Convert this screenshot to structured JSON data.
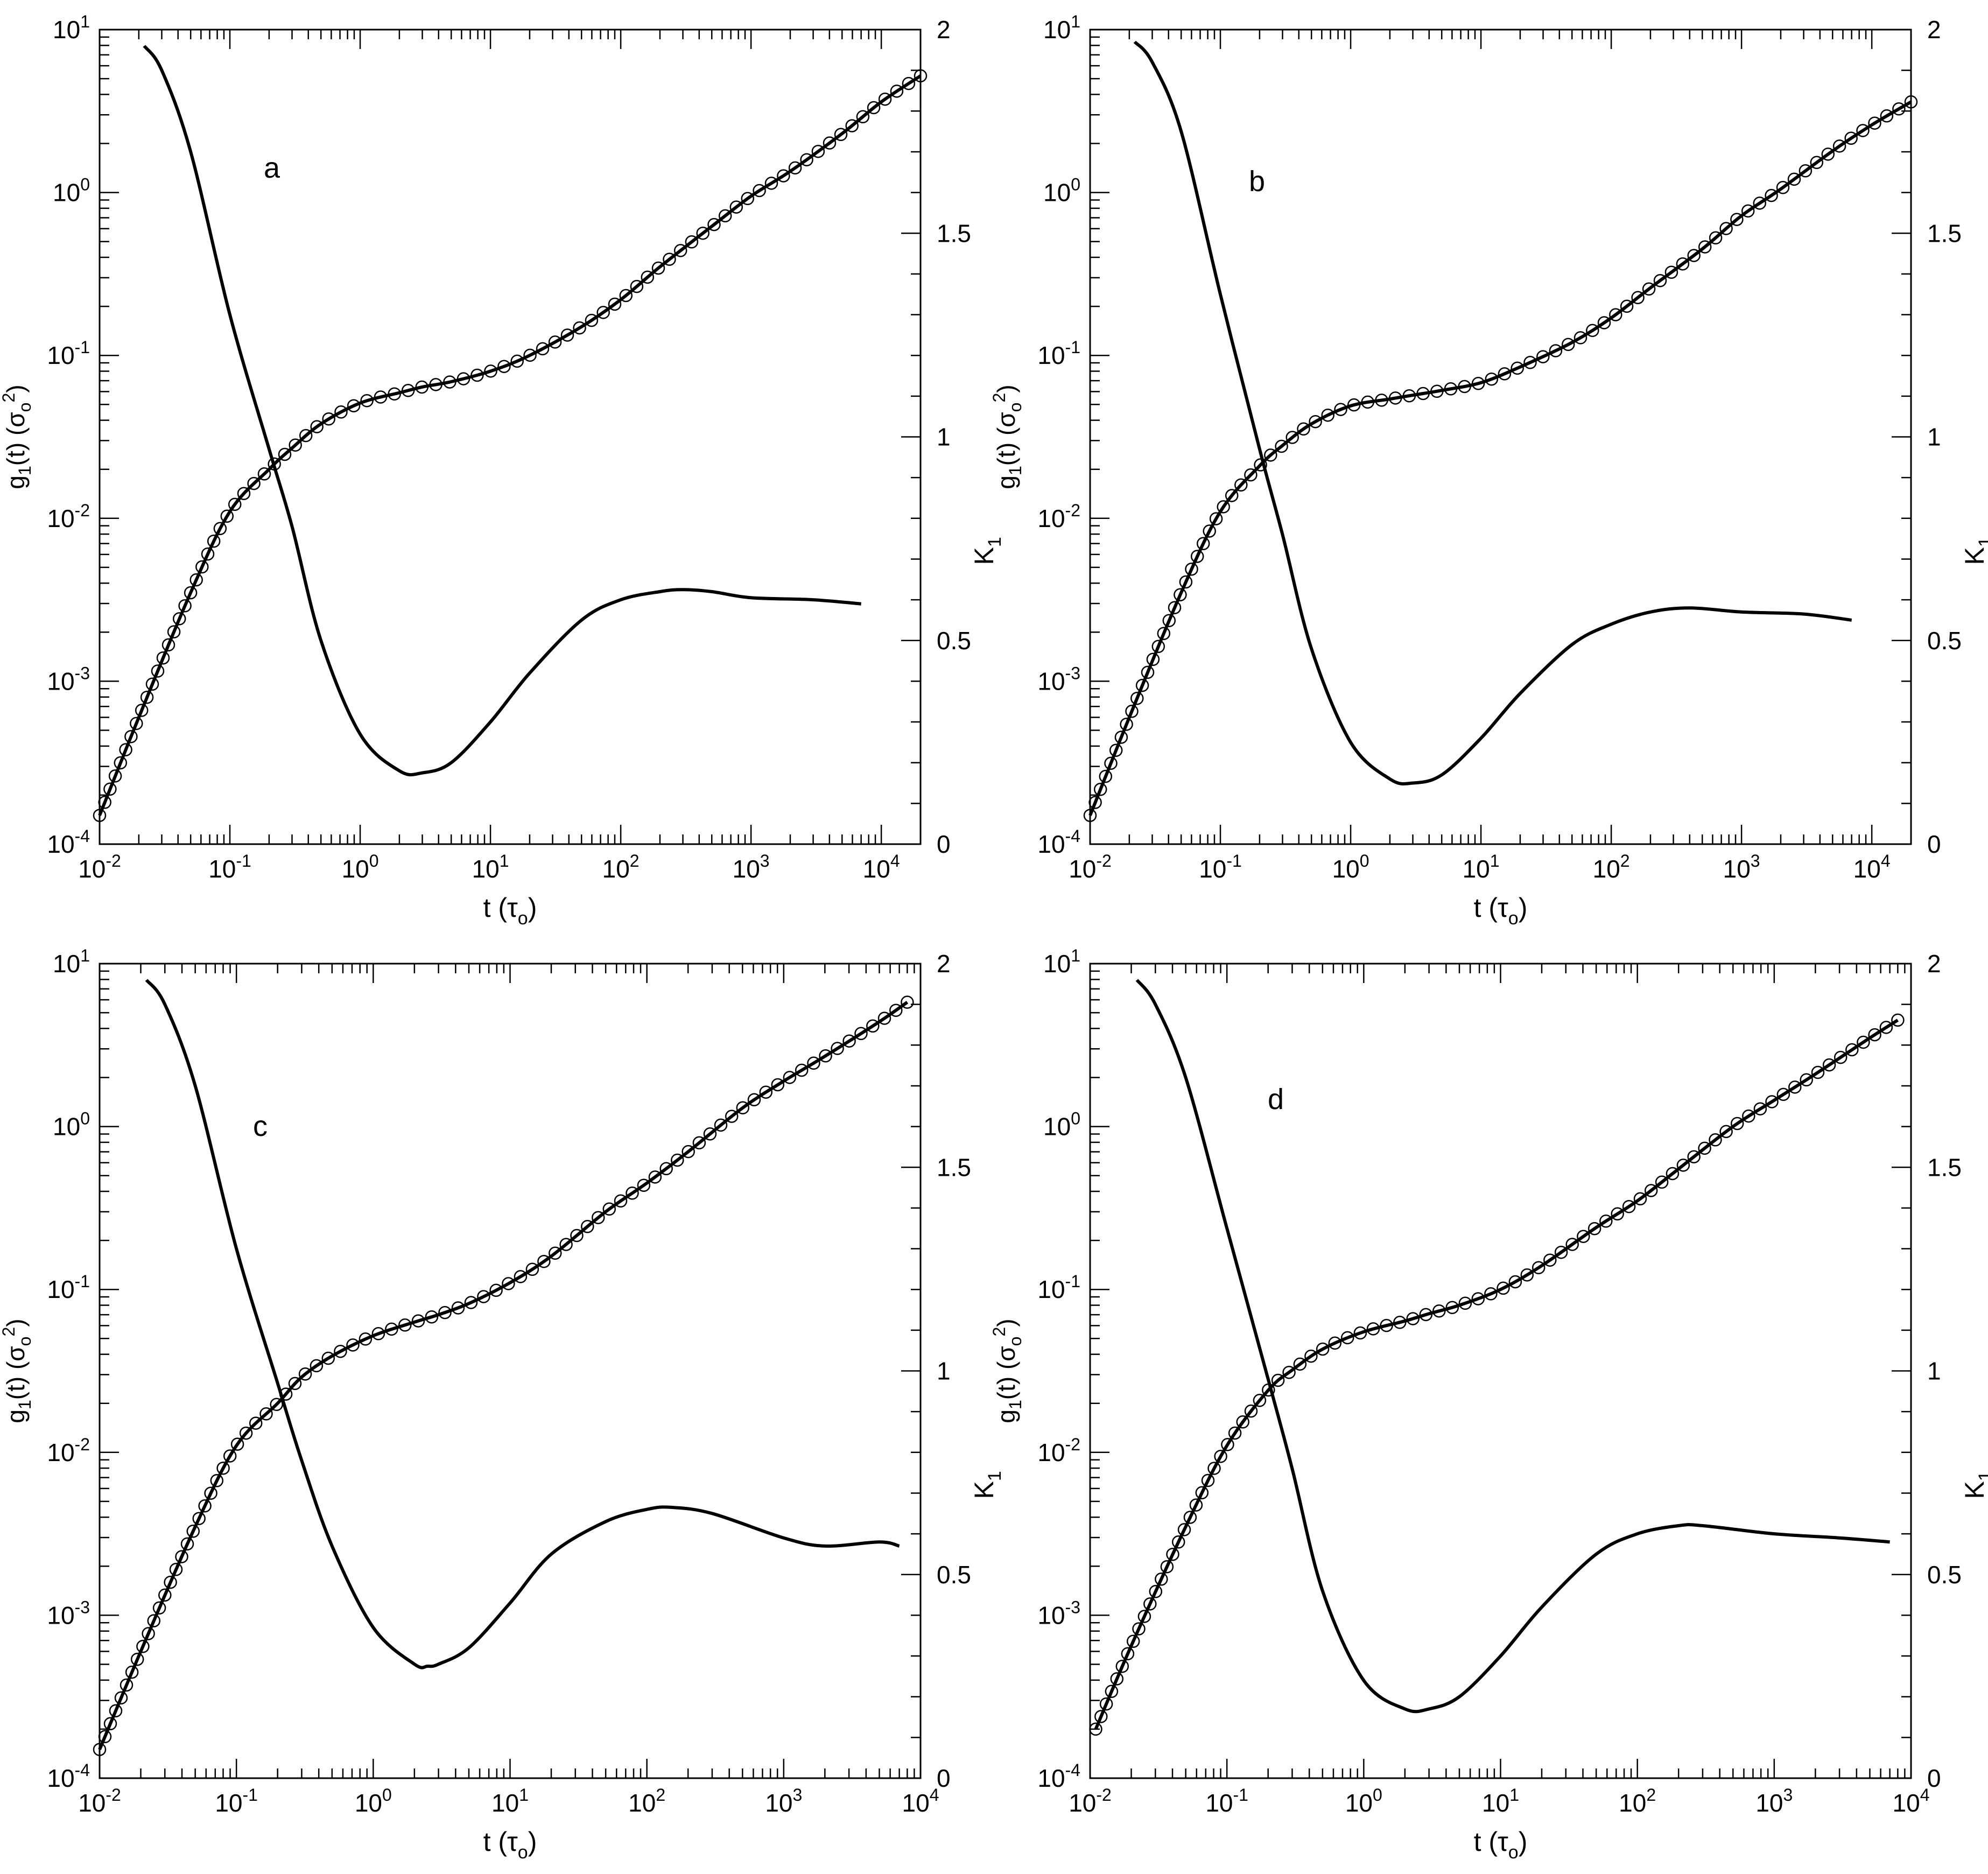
{
  "figure": {
    "panel_count": 4,
    "line_color": "#000000",
    "background": "#ffffff"
  },
  "chart_data": [
    {
      "id": "a",
      "type": "line",
      "panel_label": "a",
      "xlabel": {
        "base": "t (τ",
        "sub": "o",
        "tail": ")"
      },
      "ylabel_left": {
        "pre": "g",
        "sub1": "1",
        "mid": "(t) (σ",
        "sub2": "o",
        "sup": "2",
        "tail": ")"
      },
      "ylabel_right": {
        "base": "K",
        "sub": "1"
      },
      "x_scale": "log",
      "xlim": [
        0.01,
        20000
      ],
      "x_ticks": [
        0.01,
        0.1,
        1,
        10,
        100,
        1000,
        10000
      ],
      "x_tick_labels": [
        {
          "base": "10",
          "exp": "-2"
        },
        {
          "base": "10",
          "exp": "-1"
        },
        {
          "base": "10",
          "exp": "0"
        },
        {
          "base": "10",
          "exp": "1"
        },
        {
          "base": "10",
          "exp": "2"
        },
        {
          "base": "10",
          "exp": "3"
        },
        {
          "base": "10",
          "exp": "4"
        }
      ],
      "y_left_scale": "log",
      "y_left_lim": [
        0.0001,
        10
      ],
      "y_left_ticks": [
        0.0001,
        0.001,
        0.01,
        0.1,
        1,
        10
      ],
      "y_left_tick_labels": [
        {
          "base": "10",
          "exp": "-4"
        },
        {
          "base": "10",
          "exp": "-3"
        },
        {
          "base": "10",
          "exp": "-2"
        },
        {
          "base": "10",
          "exp": "-1"
        },
        {
          "base": "10",
          "exp": "0"
        },
        {
          "base": "10",
          "exp": "1"
        }
      ],
      "y_right_scale": "linear",
      "y_right_lim": [
        0,
        2
      ],
      "y_right_ticks": [
        0,
        0.5,
        1,
        1.5,
        2
      ],
      "y_right_tick_labels": [
        "0",
        "0.5",
        "1",
        "1.5",
        "2"
      ],
      "series": [
        {
          "axis": "left",
          "style": "circles_with_line",
          "x": [
            0.01,
            0.02,
            0.05,
            0.1,
            0.2,
            0.3,
            0.5,
            1,
            2,
            3,
            5,
            10,
            20,
            50,
            100,
            200,
            500,
            1000,
            2000,
            5000,
            10000,
            20000
          ],
          "y": [
            0.00015,
            0.0006,
            0.0035,
            0.011,
            0.02,
            0.027,
            0.038,
            0.051,
            0.059,
            0.064,
            0.069,
            0.08,
            0.1,
            0.15,
            0.22,
            0.35,
            0.62,
            0.95,
            1.35,
            2.3,
            3.6,
            5.2
          ]
        },
        {
          "axis": "right",
          "style": "line",
          "x": [
            0.022,
            0.03,
            0.05,
            0.1,
            0.2,
            0.3,
            0.5,
            1,
            2,
            3,
            5,
            10,
            20,
            50,
            100,
            200,
            300,
            500,
            1000,
            3000,
            7000
          ],
          "y": [
            1.96,
            1.9,
            1.7,
            1.3,
            0.97,
            0.78,
            0.5,
            0.27,
            0.18,
            0.175,
            0.2,
            0.3,
            0.42,
            0.55,
            0.6,
            0.62,
            0.625,
            0.62,
            0.605,
            0.6,
            0.59
          ]
        }
      ]
    },
    {
      "id": "b",
      "type": "line",
      "panel_label": "b",
      "xlabel": {
        "base": "t (τ",
        "sub": "o",
        "tail": ")"
      },
      "ylabel_left": {
        "pre": "g",
        "sub1": "1",
        "mid": "(t) (σ",
        "sub2": "o",
        "sup": "2",
        "tail": ")"
      },
      "ylabel_right": {
        "base": "K",
        "sub": "1"
      },
      "x_scale": "log",
      "xlim": [
        0.01,
        20000
      ],
      "x_ticks": [
        0.01,
        0.1,
        1,
        10,
        100,
        1000,
        10000
      ],
      "x_tick_labels": [
        {
          "base": "10",
          "exp": "-2"
        },
        {
          "base": "10",
          "exp": "-1"
        },
        {
          "base": "10",
          "exp": "0"
        },
        {
          "base": "10",
          "exp": "1"
        },
        {
          "base": "10",
          "exp": "2"
        },
        {
          "base": "10",
          "exp": "3"
        },
        {
          "base": "10",
          "exp": "4"
        }
      ],
      "y_left_scale": "log",
      "y_left_lim": [
        0.0001,
        10
      ],
      "y_left_ticks": [
        0.0001,
        0.001,
        0.01,
        0.1,
        1,
        10
      ],
      "y_left_tick_labels": [
        {
          "base": "10",
          "exp": "-4"
        },
        {
          "base": "10",
          "exp": "-3"
        },
        {
          "base": "10",
          "exp": "-2"
        },
        {
          "base": "10",
          "exp": "-1"
        },
        {
          "base": "10",
          "exp": "0"
        },
        {
          "base": "10",
          "exp": "1"
        }
      ],
      "y_right_scale": "linear",
      "y_right_lim": [
        0,
        2
      ],
      "y_right_ticks": [
        0,
        0.5,
        1,
        1.5,
        2
      ],
      "y_right_tick_labels": [
        "0",
        "0.5",
        "1",
        "1.5",
        "2"
      ],
      "series": [
        {
          "axis": "left",
          "style": "circles_with_line",
          "x": [
            0.01,
            0.02,
            0.05,
            0.1,
            0.2,
            0.3,
            0.5,
            1,
            2,
            3,
            5,
            10,
            20,
            50,
            100,
            200,
            500,
            1000,
            2000,
            5000,
            10000,
            20000
          ],
          "y": [
            0.00015,
            0.0006,
            0.0035,
            0.011,
            0.021,
            0.028,
            0.038,
            0.049,
            0.054,
            0.057,
            0.061,
            0.068,
            0.085,
            0.12,
            0.17,
            0.26,
            0.45,
            0.72,
            1.05,
            1.8,
            2.6,
            3.6
          ]
        },
        {
          "axis": "right",
          "style": "line",
          "x": [
            0.022,
            0.03,
            0.05,
            0.1,
            0.2,
            0.3,
            0.5,
            1,
            2,
            3,
            5,
            10,
            20,
            50,
            100,
            200,
            400,
            1000,
            3000,
            7000
          ],
          "y": [
            1.97,
            1.92,
            1.75,
            1.35,
            0.97,
            0.76,
            0.48,
            0.25,
            0.16,
            0.15,
            0.17,
            0.26,
            0.37,
            0.49,
            0.54,
            0.57,
            0.58,
            0.57,
            0.565,
            0.55
          ]
        }
      ]
    },
    {
      "id": "c",
      "type": "line",
      "panel_label": "c",
      "xlabel": {
        "base": "t (τ",
        "sub": "o",
        "tail": ")"
      },
      "ylabel_left": {
        "pre": "g",
        "sub1": "1",
        "mid": "(t) (σ",
        "sub2": "o",
        "sup": "2",
        "tail": ")"
      },
      "ylabel_right": {
        "base": "K",
        "sub": "1"
      },
      "x_scale": "log",
      "xlim": [
        0.01,
        10000
      ],
      "x_ticks": [
        0.01,
        0.1,
        1,
        10,
        100,
        1000,
        10000
      ],
      "x_tick_labels": [
        {
          "base": "10",
          "exp": "-2"
        },
        {
          "base": "10",
          "exp": "-1"
        },
        {
          "base": "10",
          "exp": "0"
        },
        {
          "base": "10",
          "exp": "1"
        },
        {
          "base": "10",
          "exp": "2"
        },
        {
          "base": "10",
          "exp": "3"
        },
        {
          "base": "10",
          "exp": "4"
        }
      ],
      "y_left_scale": "log",
      "y_left_lim": [
        0.0001,
        10
      ],
      "y_left_ticks": [
        0.0001,
        0.001,
        0.01,
        0.1,
        1,
        10
      ],
      "y_left_tick_labels": [
        {
          "base": "10",
          "exp": "-4"
        },
        {
          "base": "10",
          "exp": "-3"
        },
        {
          "base": "10",
          "exp": "-2"
        },
        {
          "base": "10",
          "exp": "-1"
        },
        {
          "base": "10",
          "exp": "0"
        },
        {
          "base": "10",
          "exp": "1"
        }
      ],
      "y_right_scale": "linear",
      "y_right_lim": [
        0,
        2
      ],
      "y_right_ticks": [
        0,
        0.5,
        1,
        1.5,
        2
      ],
      "y_right_tick_labels": [
        "0",
        "0.5",
        "1",
        "1.5",
        "2"
      ],
      "series": [
        {
          "axis": "left",
          "style": "circles_with_line",
          "x": [
            0.01,
            0.02,
            0.05,
            0.1,
            0.2,
            0.3,
            0.5,
            1,
            2,
            3,
            5,
            10,
            20,
            50,
            100,
            200,
            500,
            1000,
            2000,
            5000,
            8000
          ],
          "y": [
            0.00015,
            0.0006,
            0.0035,
            0.011,
            0.02,
            0.029,
            0.039,
            0.052,
            0.063,
            0.07,
            0.082,
            0.11,
            0.16,
            0.3,
            0.45,
            0.7,
            1.3,
            1.9,
            2.7,
            4.4,
            5.8
          ]
        },
        {
          "axis": "right",
          "style": "line",
          "x": [
            0.022,
            0.03,
            0.05,
            0.1,
            0.2,
            0.3,
            0.5,
            1,
            2,
            2.5,
            3,
            5,
            10,
            20,
            50,
            100,
            150,
            300,
            1000,
            2000,
            5000,
            7000
          ],
          "y": [
            1.96,
            1.9,
            1.7,
            1.3,
            0.97,
            0.78,
            0.57,
            0.37,
            0.28,
            0.275,
            0.28,
            0.32,
            0.43,
            0.55,
            0.63,
            0.66,
            0.665,
            0.65,
            0.59,
            0.57,
            0.58,
            0.57
          ]
        }
      ]
    },
    {
      "id": "d",
      "type": "line",
      "panel_label": "d",
      "xlabel": {
        "base": "t (τ",
        "sub": "o",
        "tail": ")"
      },
      "ylabel_left": {
        "pre": "g",
        "sub1": "1",
        "mid": "(t) (σ",
        "sub2": "o",
        "sup": "2",
        "tail": ")"
      },
      "ylabel_right": {
        "base": "K",
        "sub": "1"
      },
      "x_scale": "log",
      "xlim": [
        0.01,
        10000
      ],
      "x_ticks": [
        0.01,
        0.1,
        1,
        10,
        100,
        1000,
        10000
      ],
      "x_tick_labels": [
        {
          "base": "10",
          "exp": "-2"
        },
        {
          "base": "10",
          "exp": "-1"
        },
        {
          "base": "10",
          "exp": "0"
        },
        {
          "base": "10",
          "exp": "1"
        },
        {
          "base": "10",
          "exp": "2"
        },
        {
          "base": "10",
          "exp": "3"
        },
        {
          "base": "10",
          "exp": "4"
        }
      ],
      "y_left_scale": "log",
      "y_left_lim": [
        0.0001,
        10
      ],
      "y_left_ticks": [
        0.0001,
        0.001,
        0.01,
        0.1,
        1,
        10
      ],
      "y_left_tick_labels": [
        {
          "base": "10",
          "exp": "-4"
        },
        {
          "base": "10",
          "exp": "-3"
        },
        {
          "base": "10",
          "exp": "-2"
        },
        {
          "base": "10",
          "exp": "-1"
        },
        {
          "base": "10",
          "exp": "0"
        },
        {
          "base": "10",
          "exp": "1"
        }
      ],
      "y_right_scale": "linear",
      "y_right_lim": [
        0,
        2
      ],
      "y_right_ticks": [
        0,
        0.5,
        1,
        1.5,
        2
      ],
      "y_right_tick_labels": [
        "0",
        "0.5",
        "1",
        "1.5",
        "2"
      ],
      "series": [
        {
          "axis": "left",
          "style": "circles_with_line",
          "x": [
            0.011,
            0.02,
            0.05,
            0.1,
            0.2,
            0.3,
            0.5,
            1,
            2,
            3,
            5,
            10,
            20,
            50,
            100,
            200,
            500,
            1000,
            2000,
            5000,
            8000
          ],
          "y": [
            0.0002,
            0.00065,
            0.0035,
            0.011,
            0.024,
            0.032,
            0.043,
            0.055,
            0.064,
            0.071,
            0.08,
            0.1,
            0.14,
            0.24,
            0.35,
            0.55,
            1.0,
            1.45,
            2.1,
            3.5,
            4.5
          ]
        },
        {
          "axis": "right",
          "style": "line",
          "x": [
            0.022,
            0.03,
            0.05,
            0.1,
            0.2,
            0.3,
            0.5,
            1,
            2,
            3,
            5,
            10,
            20,
            50,
            100,
            200,
            300,
            1000,
            3000,
            7000
          ],
          "y": [
            1.96,
            1.9,
            1.72,
            1.35,
            0.98,
            0.76,
            0.46,
            0.24,
            0.17,
            0.17,
            0.2,
            0.3,
            0.42,
            0.55,
            0.6,
            0.62,
            0.62,
            0.6,
            0.59,
            0.58
          ]
        }
      ]
    }
  ]
}
